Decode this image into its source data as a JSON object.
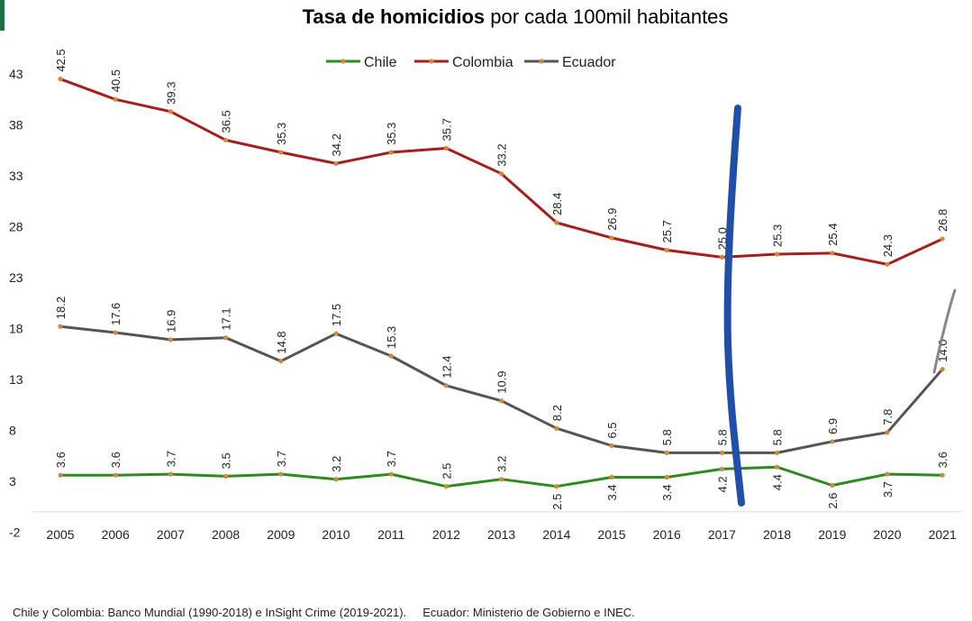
{
  "chart_data": {
    "type": "line",
    "title_bold": "Tasa de homicidios",
    "title_rest": "por cada 100mil habitantes",
    "xlabel": "",
    "ylabel": "",
    "categories": [
      "2005",
      "2006",
      "2007",
      "2008",
      "2009",
      "2010",
      "2011",
      "2012",
      "2013",
      "2014",
      "2015",
      "2016",
      "2017",
      "2018",
      "2019",
      "2020",
      "2021"
    ],
    "yticks": [
      -2,
      3,
      8,
      13,
      18,
      23,
      28,
      33,
      38,
      43
    ],
    "ylim": [
      -2,
      43
    ],
    "grid": false,
    "legend_position": "top",
    "series": [
      {
        "name": "Chile",
        "color": "#2e8b22",
        "values": [
          3.6,
          3.6,
          3.7,
          3.5,
          3.7,
          3.2,
          3.7,
          2.5,
          3.2,
          2.5,
          3.4,
          3.4,
          4.2,
          4.4,
          2.6,
          3.7,
          3.6
        ],
        "labels": [
          "3.6",
          "3.6",
          "3.7",
          "3.5",
          "3.7",
          "3.2",
          "3.7",
          "2.5",
          "3.2",
          "2.5",
          "3.4",
          "3.4",
          "4.2",
          "4.4",
          "2.6",
          "3.7",
          "3.6"
        ],
        "label_below": [
          false,
          false,
          false,
          false,
          false,
          false,
          false,
          false,
          false,
          true,
          true,
          true,
          true,
          true,
          true,
          true,
          false
        ]
      },
      {
        "name": "Colombia",
        "color": "#a51f1f",
        "values": [
          42.5,
          40.5,
          39.3,
          36.5,
          35.3,
          34.2,
          35.3,
          35.7,
          33.2,
          28.4,
          26.9,
          25.7,
          25.0,
          25.3,
          25.4,
          24.3,
          26.8
        ],
        "labels": [
          "42.5",
          "40.5",
          "39.3",
          "36.5",
          "35.3",
          "34.2",
          "35.3",
          "35.7",
          "33.2",
          "28.4",
          "26.9",
          "25.7",
          "25.0",
          "25.3",
          "25.4",
          "24.3",
          "26.8"
        ],
        "label_below": [
          false,
          false,
          false,
          false,
          false,
          false,
          false,
          false,
          false,
          false,
          false,
          false,
          false,
          false,
          false,
          false,
          false
        ]
      },
      {
        "name": "Ecuador",
        "color": "#555555",
        "values": [
          18.2,
          17.6,
          16.9,
          17.1,
          14.8,
          17.5,
          15.3,
          12.4,
          10.9,
          8.2,
          6.5,
          5.8,
          5.8,
          5.8,
          6.9,
          7.8,
          14.0
        ],
        "labels": [
          "18.2",
          "17.6",
          "16.9",
          "17.1",
          "14.8",
          "17.5",
          "15.3",
          "12.4",
          "10.9",
          "8.2",
          "6.5",
          "5.8",
          "5.8",
          "5.8",
          "6.9",
          "7.8",
          "14.0"
        ],
        "label_below": [
          false,
          false,
          false,
          false,
          false,
          false,
          false,
          false,
          false,
          false,
          false,
          false,
          false,
          false,
          false,
          false,
          false
        ]
      }
    ],
    "source_note": "Chile y Colombia: Banco Mundial (1990-2018) e InSight Crime (2019-2021).     Ecuador: Ministerio de Gobierno e INEC.",
    "annotation_colors": {
      "marker_line": "#1f4fa8",
      "scribble": "#888888"
    }
  }
}
